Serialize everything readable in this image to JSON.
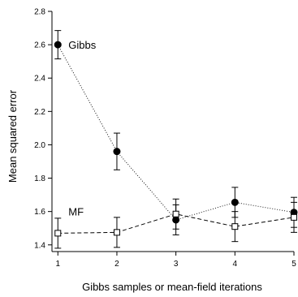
{
  "chart_data": {
    "type": "line",
    "xlabel": "Gibbs samples  or  mean-field iterations",
    "ylabel": "Mean squared error",
    "x": [
      1,
      2,
      3,
      4,
      5
    ],
    "xlim": [
      0.9,
      5.0
    ],
    "ylim": [
      1.36,
      2.8
    ],
    "xticks": [
      1,
      2,
      3,
      4,
      5
    ],
    "yticks": [
      1.4,
      1.6,
      1.8,
      2.0,
      2.2,
      2.4,
      2.6,
      2.8
    ],
    "grid": false,
    "series": [
      {
        "name": "Gibbs",
        "marker": "filled-circle",
        "line": "dotted",
        "values": [
          2.6,
          1.96,
          1.55,
          1.655,
          1.595
        ],
        "errors": [
          0.085,
          0.11,
          0.09,
          0.09,
          0.09
        ]
      },
      {
        "name": "MF",
        "marker": "open-square",
        "line": "dashed",
        "values": [
          1.47,
          1.475,
          1.585,
          1.51,
          1.565
        ],
        "errors": [
          0.09,
          0.09,
          0.09,
          0.09,
          0.09
        ]
      }
    ]
  }
}
